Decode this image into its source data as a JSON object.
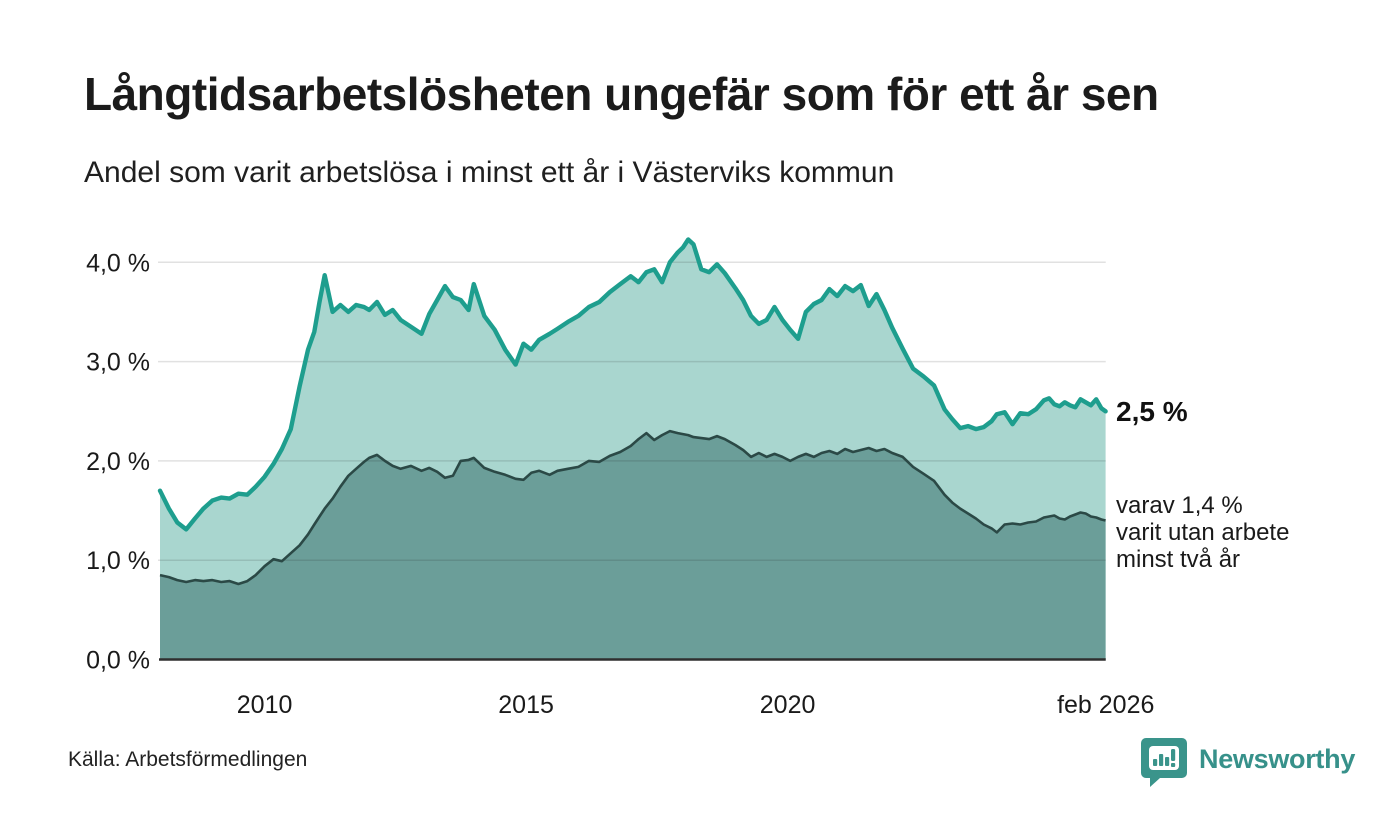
{
  "header": {
    "title": "Långtidsarbetslösheten ungefär som för ett år sen",
    "subtitle": "Andel som varit arbetslösa i minst ett år i Västerviks kommun"
  },
  "annotations": {
    "latest_total": "2,5 %",
    "secondary_line1": "varav 1,4 %",
    "secondary_line2": "varit utan arbete",
    "secondary_line3": "minst två år"
  },
  "footer": {
    "source": "Källa: Arbetsförmedlingen",
    "brand": "Newsworthy",
    "brand_icon": "bar-chart-speech-bubble"
  },
  "colors": {
    "accent_stroke": "#1e9e8e",
    "accent_fill": "#a9d6cf",
    "dark_stroke": "#2b4946",
    "dark_fill": "#6b9e99",
    "grid": "#1a1a1a",
    "axis": "#2f2f2f",
    "text": "#1a1a1a",
    "brand_teal": "#3a948b"
  },
  "chart_data": {
    "type": "area",
    "title": "Långtidsarbetslösheten ungefär som för ett år sen",
    "subtitle": "Andel som varit arbetslösa i minst ett år i Västerviks kommun",
    "unit": "percent",
    "xlim": [
      2008.0,
      2026.083
    ],
    "ylim": [
      0,
      4.35
    ],
    "grid": true,
    "legend_position": "right-annotations",
    "yticks": [
      {
        "label": "0,0 %",
        "value": 0
      },
      {
        "label": "1,0 %",
        "value": 1
      },
      {
        "label": "2,0 %",
        "value": 2
      },
      {
        "label": "3,0 %",
        "value": 3
      },
      {
        "label": "4,0 %",
        "value": 4
      }
    ],
    "xticks": [
      {
        "label": "2010",
        "x": 2010
      },
      {
        "label": "2015",
        "x": 2015
      },
      {
        "label": "2020",
        "x": 2020
      },
      {
        "label": "feb 2026",
        "x": 2026.083
      }
    ],
    "x": [
      2008.0,
      2008.17,
      2008.33,
      2008.5,
      2008.67,
      2008.83,
      2009.0,
      2009.17,
      2009.33,
      2009.5,
      2009.67,
      2009.83,
      2010.0,
      2010.17,
      2010.33,
      2010.5,
      2010.67,
      2010.83,
      2010.95,
      2011.05,
      2011.15,
      2011.3,
      2011.45,
      2011.6,
      2011.75,
      2011.9,
      2012.0,
      2012.15,
      2012.3,
      2012.45,
      2012.6,
      2012.8,
      2013.0,
      2013.15,
      2013.3,
      2013.45,
      2013.6,
      2013.75,
      2013.9,
      2014.0,
      2014.2,
      2014.4,
      2014.6,
      2014.8,
      2014.95,
      2015.1,
      2015.25,
      2015.45,
      2015.6,
      2015.8,
      2016.0,
      2016.2,
      2016.4,
      2016.6,
      2016.8,
      2017.0,
      2017.15,
      2017.3,
      2017.45,
      2017.6,
      2017.75,
      2017.9,
      2018.0,
      2018.1,
      2018.2,
      2018.35,
      2018.5,
      2018.65,
      2018.8,
      2019.0,
      2019.15,
      2019.3,
      2019.45,
      2019.6,
      2019.75,
      2019.9,
      2020.05,
      2020.2,
      2020.35,
      2020.5,
      2020.65,
      2020.8,
      2020.95,
      2021.1,
      2021.25,
      2021.4,
      2021.55,
      2021.7,
      2021.85,
      2022.0,
      2022.2,
      2022.4,
      2022.6,
      2022.8,
      2023.0,
      2023.15,
      2023.3,
      2023.45,
      2023.6,
      2023.75,
      2023.9,
      2024.0,
      2024.15,
      2024.3,
      2024.45,
      2024.6,
      2024.75,
      2024.9,
      2025.0,
      2025.1,
      2025.2,
      2025.3,
      2025.4,
      2025.5,
      2025.6,
      2025.7,
      2025.8,
      2025.9,
      2026.0,
      2026.08
    ],
    "series": [
      {
        "name": "Andel som varit arbetslösa i minst ett år",
        "latest_value": 2.5,
        "values": [
          1.7,
          1.52,
          1.38,
          1.31,
          1.42,
          1.52,
          1.6,
          1.63,
          1.62,
          1.67,
          1.66,
          1.74,
          1.84,
          1.97,
          2.12,
          2.32,
          2.75,
          3.12,
          3.3,
          3.6,
          3.87,
          3.5,
          3.57,
          3.5,
          3.57,
          3.55,
          3.52,
          3.6,
          3.47,
          3.52,
          3.42,
          3.35,
          3.28,
          3.48,
          3.62,
          3.76,
          3.65,
          3.62,
          3.52,
          3.78,
          3.46,
          3.32,
          3.12,
          2.97,
          3.18,
          3.12,
          3.22,
          3.28,
          3.33,
          3.4,
          3.46,
          3.55,
          3.6,
          3.7,
          3.78,
          3.86,
          3.8,
          3.9,
          3.93,
          3.8,
          4.0,
          4.1,
          4.15,
          4.23,
          4.18,
          3.93,
          3.9,
          3.98,
          3.89,
          3.74,
          3.62,
          3.46,
          3.38,
          3.42,
          3.55,
          3.42,
          3.32,
          3.23,
          3.5,
          3.58,
          3.62,
          3.73,
          3.66,
          3.76,
          3.71,
          3.77,
          3.56,
          3.68,
          3.52,
          3.34,
          3.13,
          2.93,
          2.85,
          2.76,
          2.52,
          2.42,
          2.33,
          2.35,
          2.32,
          2.34,
          2.4,
          2.47,
          2.49,
          2.37,
          2.48,
          2.47,
          2.52,
          2.61,
          2.63,
          2.57,
          2.55,
          2.59,
          2.56,
          2.54,
          2.62,
          2.59,
          2.56,
          2.62,
          2.53,
          2.5
        ]
      },
      {
        "name": "varav varit utan arbete minst två år",
        "latest_value": 1.4,
        "values": [
          0.85,
          0.83,
          0.8,
          0.78,
          0.8,
          0.79,
          0.8,
          0.78,
          0.79,
          0.76,
          0.79,
          0.85,
          0.94,
          1.01,
          0.99,
          1.07,
          1.15,
          1.26,
          1.36,
          1.44,
          1.52,
          1.62,
          1.74,
          1.85,
          1.92,
          1.99,
          2.03,
          2.06,
          2.0,
          1.95,
          1.92,
          1.95,
          1.9,
          1.93,
          1.89,
          1.83,
          1.85,
          2.0,
          2.01,
          2.03,
          1.93,
          1.89,
          1.86,
          1.82,
          1.81,
          1.88,
          1.9,
          1.86,
          1.9,
          1.92,
          1.94,
          2.0,
          1.99,
          2.05,
          2.09,
          2.15,
          2.22,
          2.28,
          2.21,
          2.26,
          2.3,
          2.28,
          2.27,
          2.26,
          2.24,
          2.23,
          2.22,
          2.25,
          2.22,
          2.16,
          2.11,
          2.04,
          2.08,
          2.04,
          2.07,
          2.04,
          2.0,
          2.04,
          2.07,
          2.04,
          2.08,
          2.1,
          2.07,
          2.12,
          2.09,
          2.11,
          2.13,
          2.1,
          2.12,
          2.08,
          2.04,
          1.94,
          1.87,
          1.8,
          1.66,
          1.58,
          1.52,
          1.47,
          1.42,
          1.36,
          1.32,
          1.28,
          1.36,
          1.37,
          1.36,
          1.38,
          1.39,
          1.43,
          1.44,
          1.45,
          1.42,
          1.41,
          1.44,
          1.46,
          1.48,
          1.47,
          1.44,
          1.43,
          1.41,
          1.4
        ]
      }
    ]
  }
}
